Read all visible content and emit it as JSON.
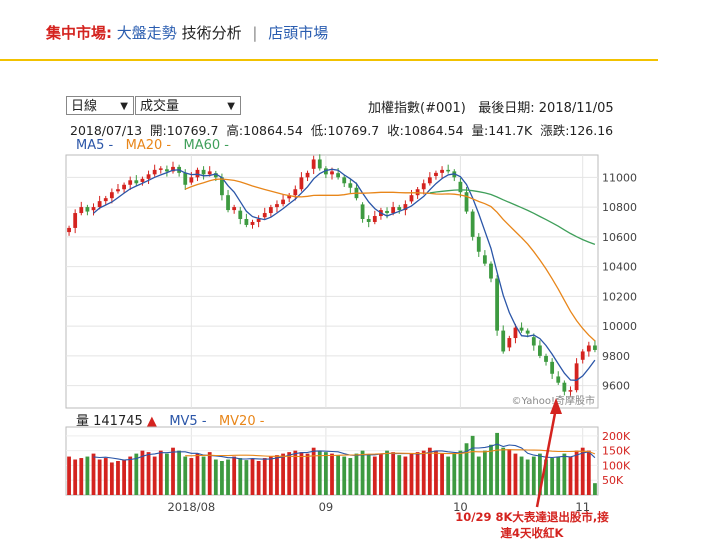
{
  "nav": {
    "market": "集中市場:",
    "trend": "大盤走勢",
    "tech": "技術分析",
    "separator": "|",
    "otc": "店頭市場"
  },
  "controls": {
    "period": "日線",
    "indicator": "成交量"
  },
  "header": {
    "index_name": "加權指數(#001)",
    "last_date_label": "最後日期: 2018/11/05"
  },
  "ohlc": {
    "date": "2018/07/13",
    "open": "開:10769.7",
    "high": "高:10864.54",
    "low": "低:10769.7",
    "close": "收:10864.54",
    "volume": "量:141.7K",
    "change": "漲跌:126.16"
  },
  "legend": {
    "ma5": "MA5 -",
    "ma20": "MA20 -",
    "ma60": "MA60 -"
  },
  "volume_legend": {
    "label": "量 141745",
    "arrow": "▲",
    "mv5": "MV5 -",
    "mv20": "MV20 -"
  },
  "watermark": "©Yahoo!奇摩股市",
  "annotation": {
    "line1": "10/29 8K大表達退出股市,接",
    "line2": "連4天收紅K"
  },
  "colors": {
    "up": "#d4231f",
    "down": "#3d9a40",
    "ma5": "#2b56a8",
    "ma20": "#e8861a",
    "ma60": "#3f9f5a"
  },
  "chart_data": {
    "type": "candlestick",
    "price_axis": {
      "ticks": [
        9600,
        9800,
        10000,
        10200,
        10400,
        10600,
        10800,
        11000
      ],
      "range": [
        9450,
        11150
      ]
    },
    "volume_axis": {
      "ticks": [
        "50K",
        "100K",
        "150K",
        "200K"
      ],
      "tick_values": [
        50,
        100,
        150,
        200
      ],
      "range": [
        0,
        230
      ]
    },
    "x_labels": [
      {
        "label": "2018/08",
        "index": 20
      },
      {
        "label": "09",
        "index": 42
      },
      {
        "label": "10",
        "index": 64
      },
      {
        "label": "11",
        "index": 84
      }
    ],
    "closes": [
      10660,
      10760,
      10800,
      10770,
      10800,
      10840,
      10860,
      10900,
      10920,
      10950,
      10980,
      10960,
      10990,
      11020,
      11050,
      11060,
      11040,
      11070,
      11030,
      10950,
      11000,
      11050,
      11020,
      11040,
      11000,
      10880,
      10780,
      10800,
      10720,
      10680,
      10700,
      10720,
      10760,
      10800,
      10820,
      10850,
      10880,
      10920,
      11000,
      11030,
      11120,
      11060,
      11020,
      11040,
      11000,
      10960,
      10930,
      10860,
      10720,
      10700,
      10740,
      10780,
      10760,
      10800,
      10780,
      10820,
      10880,
      10920,
      10960,
      11000,
      11030,
      11050,
      11040,
      11000,
      10900,
      10770,
      10600,
      10500,
      10420,
      10320,
      9970,
      9830,
      9920,
      9990,
      9970,
      9950,
      9870,
      9800,
      9760,
      9680,
      9620,
      9560,
      9570,
      9750,
      9830,
      9870,
      9840
    ],
    "volumes": [
      130,
      120,
      125,
      130,
      140,
      120,
      125,
      110,
      115,
      120,
      130,
      140,
      150,
      145,
      130,
      150,
      140,
      160,
      150,
      130,
      125,
      140,
      130,
      145,
      120,
      115,
      120,
      130,
      125,
      118,
      122,
      115,
      125,
      130,
      135,
      140,
      145,
      150,
      145,
      140,
      160,
      150,
      145,
      140,
      135,
      130,
      125,
      140,
      150,
      135,
      130,
      140,
      150,
      145,
      135,
      130,
      140,
      145,
      150,
      160,
      150,
      140,
      130,
      140,
      150,
      175,
      200,
      130,
      150,
      170,
      210,
      160,
      155,
      140,
      130,
      120,
      130,
      140,
      120,
      125,
      130,
      140,
      130,
      150,
      160,
      150,
      40
    ],
    "last_volume": "141745"
  }
}
